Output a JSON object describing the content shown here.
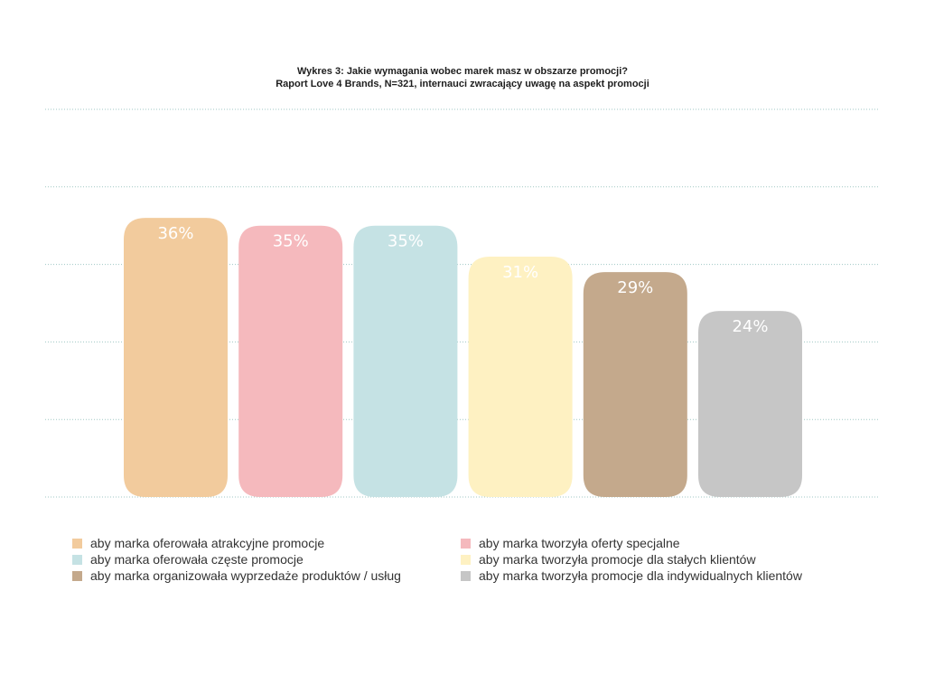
{
  "chart_data": {
    "type": "bar",
    "title": "Wykres 3: Jakie wymagania wobec marek masz w obszarze promocji?",
    "subtitle": "Raport Love 4 Brands, N=321, internauci zwracający uwagę na aspekt promocji",
    "categories": [
      "aby marka oferowała atrakcyjne promocje",
      "aby marka tworzyła oferty specjalne",
      "aby marka oferowała częste promocje",
      "aby marka tworzyła promocje dla stałych klientów",
      "aby marka organizowała wyprzedaże produktów / usług",
      "aby marka tworzyła promocje dla indywidualnych klientów"
    ],
    "values": [
      36,
      35,
      35,
      31,
      29,
      24
    ],
    "data_labels": [
      "36%",
      "35%",
      "35%",
      "31%",
      "29%",
      "24%"
    ],
    "colors": [
      "#F2CB9D",
      "#F5B9BD",
      "#C5E2E4",
      "#FEF1C2",
      "#C4A98C",
      "#C6C6C6"
    ],
    "label_color": "#ffffff",
    "grid_color": "#9FC7C4",
    "ylim": [
      0,
      50
    ],
    "grid": true,
    "legend": "bottom"
  }
}
